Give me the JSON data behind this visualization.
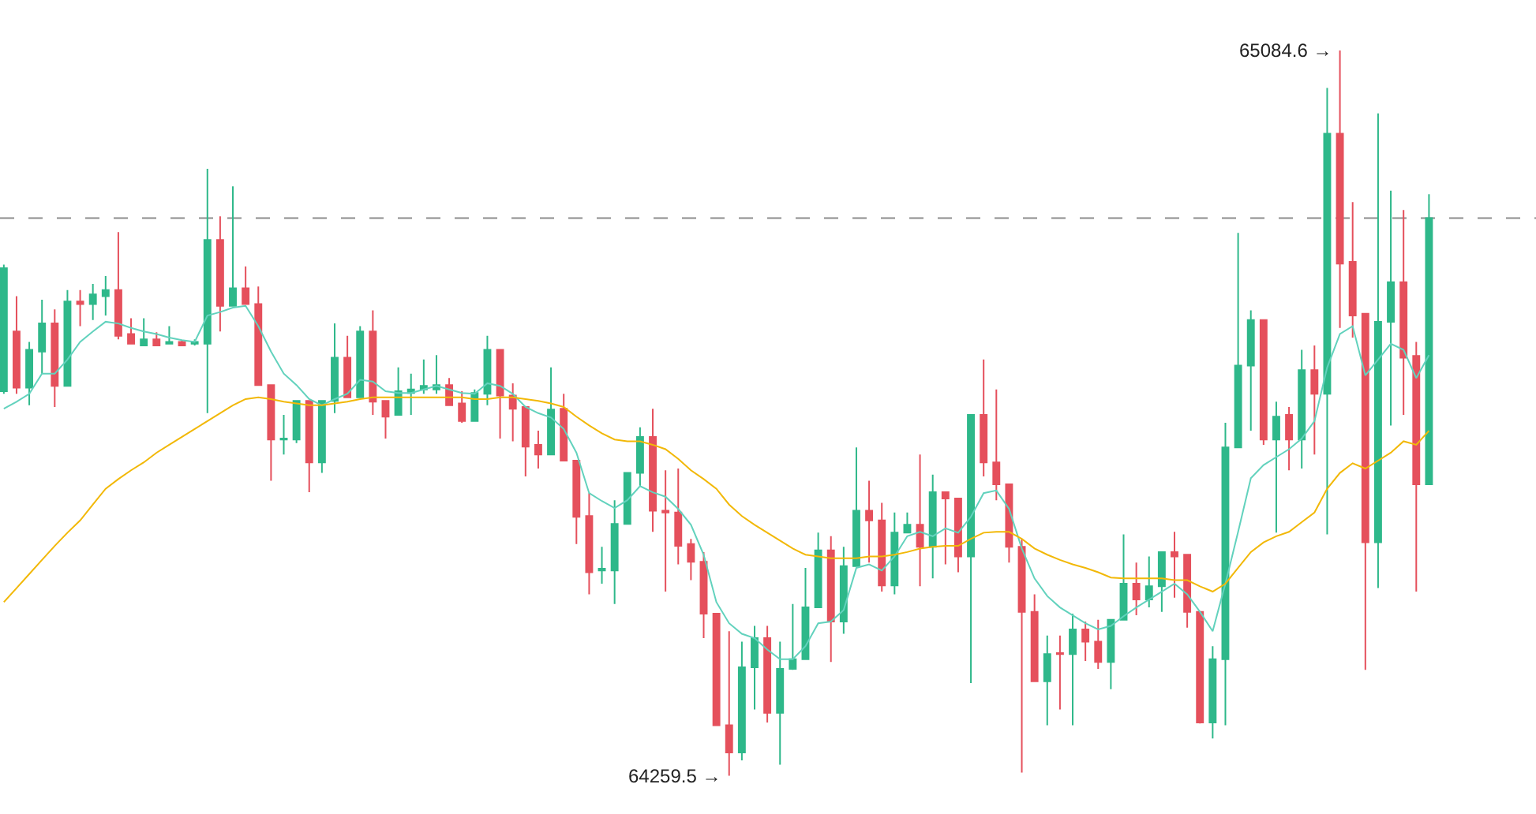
{
  "chart_data": {
    "type": "candlestick",
    "categories": [
      null,
      null,
      null,
      null,
      null,
      null,
      null,
      null,
      null,
      null,
      null,
      null,
      null,
      null,
      null,
      null,
      null,
      null,
      null,
      null,
      null,
      null,
      null,
      null,
      null,
      null,
      null,
      null,
      null,
      null,
      null,
      null,
      null,
      null,
      null,
      null,
      null,
      null,
      null,
      null,
      null,
      null,
      null,
      null,
      null,
      null,
      null,
      null,
      null,
      null,
      null,
      null,
      null,
      null,
      null,
      null,
      null,
      null,
      null,
      null,
      null,
      null,
      null,
      null,
      null,
      null,
      null,
      null,
      null,
      null,
      null,
      null,
      null,
      null,
      null,
      null,
      null,
      null,
      null,
      null,
      null,
      null,
      null,
      null,
      null,
      null,
      null,
      null,
      null,
      null,
      null,
      null,
      null,
      null,
      null,
      null,
      null,
      null,
      null,
      null,
      null,
      null,
      null,
      null,
      null,
      null,
      null,
      null,
      null,
      null,
      null,
      null,
      null
    ],
    "ohlc": [
      [
        64697,
        64841,
        64694,
        64837
      ],
      [
        64765,
        64805,
        64694,
        64701
      ],
      [
        64701,
        64753,
        64681,
        64744
      ],
      [
        64742,
        64801,
        64717,
        64774
      ],
      [
        64774,
        64790,
        64679,
        64703
      ],
      [
        64703,
        64812,
        64703,
        64799
      ],
      [
        64799,
        64812,
        64771,
        64796
      ],
      [
        64796,
        64819,
        64778,
        64807
      ],
      [
        64805,
        64828,
        64783,
        64812
      ],
      [
        64812,
        64878,
        64756,
        64760
      ],
      [
        64762,
        64780,
        64751,
        64751
      ],
      [
        64749,
        64780,
        64749,
        64756
      ],
      [
        64756,
        64764,
        64749,
        64749
      ],
      [
        64751,
        64771,
        64751,
        64753
      ],
      [
        64753,
        64755,
        64749,
        64749
      ],
      [
        64751,
        64756,
        64749,
        64753
      ],
      [
        64751,
        64950,
        64672,
        64869
      ],
      [
        64869,
        64896,
        64765,
        64794
      ],
      [
        64794,
        64930,
        64794,
        64814
      ],
      [
        64814,
        64839,
        64796,
        64796
      ],
      [
        64796,
        64816,
        64703,
        64704
      ],
      [
        64704,
        64704,
        64595,
        64642
      ],
      [
        64642,
        64670,
        64625,
        64643
      ],
      [
        64642,
        64686,
        64638,
        64686
      ],
      [
        64686,
        64686,
        64582,
        64616
      ],
      [
        64616,
        64686,
        64604,
        64686
      ],
      [
        64686,
        64774,
        64672,
        64735
      ],
      [
        64735,
        64760,
        64690,
        64690
      ],
      [
        64690,
        64771,
        64690,
        64765
      ],
      [
        64765,
        64789,
        64670,
        64685
      ],
      [
        64686,
        64686,
        64643,
        64668
      ],
      [
        64670,
        64724,
        64670,
        64697
      ],
      [
        64695,
        64717,
        64670,
        64699
      ],
      [
        64699,
        64733,
        64694,
        64703
      ],
      [
        64699,
        64738,
        64694,
        64704
      ],
      [
        64704,
        64712,
        64681,
        64681
      ],
      [
        64683,
        64697,
        64661,
        64663
      ],
      [
        64663,
        64699,
        64663,
        64695
      ],
      [
        64694,
        64760,
        64681,
        64744
      ],
      [
        64744,
        64744,
        64643,
        64692
      ],
      [
        64692,
        64706,
        64640,
        64677
      ],
      [
        64679,
        64679,
        64600,
        64634
      ],
      [
        64636,
        64652,
        64609,
        64625
      ],
      [
        64625,
        64724,
        64625,
        64676
      ],
      [
        64677,
        64694,
        64618,
        64618
      ],
      [
        64618,
        64618,
        64523,
        64554
      ],
      [
        64555,
        64581,
        64466,
        64491
      ],
      [
        64493,
        64520,
        64478,
        64495
      ],
      [
        64493,
        64573,
        64455,
        64546
      ],
      [
        64546,
        64604,
        64546,
        64604
      ],
      [
        64604,
        64656,
        64589,
        64645
      ],
      [
        64645,
        64677,
        64537,
        64561
      ],
      [
        64561,
        64607,
        64469,
        64559
      ],
      [
        64559,
        64609,
        64500,
        64521
      ],
      [
        64523,
        64529,
        64482,
        64503
      ],
      [
        64503,
        64514,
        64416,
        64444
      ],
      [
        64444,
        64444,
        64317,
        64317
      ],
      [
        64317,
        64424,
        64259.5,
        64286
      ],
      [
        64286,
        64412,
        64277,
        64383
      ],
      [
        64383,
        64430,
        64335,
        64416
      ],
      [
        64416,
        64430,
        64320,
        64331
      ],
      [
        64331,
        64412,
        64272,
        64381
      ],
      [
        64381,
        64455,
        64380,
        64392
      ],
      [
        64392,
        64496,
        64392,
        64451
      ],
      [
        64451,
        64536,
        64451,
        64516
      ],
      [
        64516,
        64532,
        64389,
        64435
      ],
      [
        64435,
        64520,
        64421,
        64498
      ],
      [
        64498,
        64633,
        64498,
        64561
      ],
      [
        64561,
        64595,
        64502,
        64550
      ],
      [
        64550,
        64570,
        64469,
        64476
      ],
      [
        64476,
        64559,
        64466,
        64536
      ],
      [
        64536,
        64559,
        64536,
        64545
      ],
      [
        64545,
        64625,
        64475,
        64520
      ],
      [
        64520,
        64602,
        64484,
        64582
      ],
      [
        64582,
        64582,
        64500,
        64575
      ],
      [
        64575,
        64575,
        64491,
        64509
      ],
      [
        64509,
        64670,
        64365,
        64670
      ],
      [
        64670,
        64733,
        64600,
        64616
      ],
      [
        64616,
        64699,
        64573,
        64591
      ],
      [
        64591,
        64591,
        64502,
        64520
      ],
      [
        64520,
        64529,
        64263,
        64446
      ],
      [
        64446,
        64466,
        64367,
        64367
      ],
      [
        64367,
        64419,
        64317,
        64398
      ],
      [
        64399,
        64419,
        64335,
        64398
      ],
      [
        64398,
        64444,
        64317,
        64426
      ],
      [
        64426,
        64435,
        64390,
        64412
      ],
      [
        64412,
        64437,
        64381,
        64389
      ],
      [
        64389,
        64437,
        64358,
        64437
      ],
      [
        64437,
        64534,
        64437,
        64478
      ],
      [
        64478,
        64502,
        64442,
        64460
      ],
      [
        64460,
        64509,
        64451,
        64475
      ],
      [
        64475,
        64514,
        64446,
        64514
      ],
      [
        64514,
        64537,
        64462,
        64509
      ],
      [
        64511,
        64511,
        64428,
        64446
      ],
      [
        64446,
        64446,
        64319,
        64320
      ],
      [
        64320,
        64407,
        64302,
        64392
      ],
      [
        64392,
        64661,
        64317,
        64633
      ],
      [
        64633,
        64877,
        64633,
        64726
      ],
      [
        64726,
        64789,
        64652,
        64778
      ],
      [
        64778,
        64778,
        64636,
        64642
      ],
      [
        64642,
        64685,
        64536,
        64668
      ],
      [
        64670,
        64679,
        64607,
        64642
      ],
      [
        64642,
        64744,
        64609,
        64721
      ],
      [
        64721,
        64749,
        64625,
        64694
      ],
      [
        64694,
        65042,
        64534,
        64990
      ],
      [
        64990,
        65084.6,
        64769,
        64842
      ],
      [
        64844,
        64912,
        64758,
        64783
      ],
      [
        64785,
        64785,
        64380,
        64525
      ],
      [
        64525,
        65013,
        64473,
        64776
      ],
      [
        64776,
        64925,
        64658,
        64821
      ],
      [
        64821,
        64903,
        64670,
        64735
      ],
      [
        64737,
        64753,
        64469,
        64591
      ],
      [
        64591,
        64921,
        64591,
        64894
      ]
    ],
    "colors": [
      "#2eb88a",
      "#e5505c",
      "#2eb88a",
      "#2eb88a",
      "#e5505c",
      "#2eb88a",
      "#e5505c",
      "#2eb88a",
      "#2eb88a",
      "#e5505c",
      "#e5505c",
      "#2eb88a",
      "#e5505c",
      "#2eb88a",
      "#e5505c",
      "#2eb88a",
      "#2eb88a",
      "#e5505c",
      "#2eb88a",
      "#e5505c",
      "#e5505c",
      "#e5505c",
      "#2eb88a",
      "#2eb88a",
      "#e5505c",
      "#2eb88a",
      "#2eb88a",
      "#e5505c",
      "#2eb88a",
      "#e5505c",
      "#e5505c",
      "#2eb88a",
      "#2eb88a",
      "#2eb88a",
      "#2eb88a",
      "#e5505c",
      "#e5505c",
      "#2eb88a",
      "#2eb88a",
      "#e5505c",
      "#e5505c",
      "#e5505c",
      "#e5505c",
      "#2eb88a",
      "#e5505c",
      "#e5505c",
      "#e5505c",
      "#2eb88a",
      "#2eb88a",
      "#2eb88a",
      "#2eb88a",
      "#e5505c",
      "#e5505c",
      "#e5505c",
      "#e5505c",
      "#e5505c",
      "#e5505c",
      "#e5505c",
      "#2eb88a",
      "#2eb88a",
      "#e5505c",
      "#2eb88a",
      "#2eb88a",
      "#2eb88a",
      "#2eb88a",
      "#e5505c",
      "#2eb88a",
      "#2eb88a",
      "#e5505c",
      "#e5505c",
      "#2eb88a",
      "#2eb88a",
      "#e5505c",
      "#2eb88a",
      "#e5505c",
      "#e5505c",
      "#2eb88a",
      "#e5505c",
      "#e5505c",
      "#e5505c",
      "#e5505c",
      "#e5505c",
      "#2eb88a",
      "#e5505c",
      "#2eb88a",
      "#e5505c",
      "#e5505c",
      "#2eb88a",
      "#2eb88a",
      "#e5505c",
      "#2eb88a",
      "#2eb88a",
      "#e5505c",
      "#e5505c",
      "#e5505c",
      "#2eb88a",
      "#2eb88a",
      "#2eb88a",
      "#2eb88a",
      "#e5505c",
      "#2eb88a",
      "#e5505c",
      "#2eb88a",
      "#e5505c",
      "#2eb88a",
      "#e5505c",
      "#e5505c",
      "#e5505c",
      "#2eb88a",
      "#2eb88a",
      "#e5505c",
      "#e5505c",
      "#2eb88a"
    ],
    "series": [
      {
        "type": "line",
        "color": "#62d2bd",
        "values": [
          64677,
          64685,
          64694,
          64717,
          64717,
          64733,
          64753,
          64765,
          64776,
          64774,
          64769,
          64765,
          64762,
          64758,
          64755,
          64753,
          64783,
          64787,
          64792,
          64794,
          64771,
          64742,
          64717,
          64704,
          64688,
          64681,
          64688,
          64694,
          64710,
          64708,
          64697,
          64695,
          64695,
          64699,
          64703,
          64699,
          64695,
          64694,
          64706,
          64703,
          64694,
          64679,
          64672,
          64667,
          64654,
          64627,
          64581,
          64572,
          64564,
          64573,
          64589,
          64582,
          64577,
          64563,
          64545,
          64511,
          64457,
          64433,
          64421,
          64416,
          64403,
          64392,
          64392,
          64407,
          64433,
          64435,
          64448,
          64496,
          64500,
          64493,
          64509,
          64532,
          64537,
          64532,
          64541,
          64536,
          64554,
          64581,
          64584,
          64563,
          64518,
          64484,
          64464,
          64451,
          64442,
          64433,
          64426,
          64430,
          64441,
          64451,
          64460,
          64469,
          64478,
          64466,
          64446,
          64424,
          64478,
          64537,
          64598,
          64613,
          64622,
          64631,
          64643,
          64663,
          64724,
          64762,
          64771,
          64715,
          64733,
          64751,
          64744,
          64712,
          64738
        ]
      },
      {
        "type": "line",
        "color": "#f2b807",
        "values": [
          64457,
          64473,
          64489,
          64505,
          64521,
          64536,
          64550,
          64568,
          64586,
          64597,
          64607,
          64616,
          64627,
          64636,
          64645,
          64654,
          64663,
          64672,
          64681,
          64688,
          64690,
          64688,
          64685,
          64683,
          64681,
          64681,
          64683,
          64685,
          64688,
          64690,
          64690,
          64690,
          64690,
          64690,
          64690,
          64690,
          64690,
          64688,
          64688,
          64690,
          64690,
          64688,
          64686,
          64683,
          64679,
          64668,
          64658,
          64649,
          64642,
          64640,
          64640,
          64636,
          64631,
          64620,
          64607,
          64597,
          64586,
          64568,
          64555,
          64545,
          64536,
          64527,
          64518,
          64511,
          64509,
          64507,
          64507,
          64507,
          64509,
          64509,
          64511,
          64514,
          64518,
          64520,
          64521,
          64521,
          64529,
          64536,
          64537,
          64537,
          64529,
          64518,
          64511,
          64505,
          64500,
          64496,
          64491,
          64485,
          64484,
          64484,
          64484,
          64484,
          64482,
          64482,
          64475,
          64469,
          64478,
          64496,
          64514,
          64525,
          64532,
          64537,
          64548,
          64559,
          64586,
          64604,
          64615,
          64609,
          64618,
          64627,
          64640,
          64636,
          64652
        ]
      }
    ],
    "ref_lines": [
      {
        "axis": "y",
        "value": 64894,
        "color": "#8c8c8c",
        "line_style": "dashed"
      }
    ],
    "annotations": [
      "65084.6 →",
      "64259.5 →"
    ],
    "ylim": [
      64216,
      65142
    ]
  }
}
